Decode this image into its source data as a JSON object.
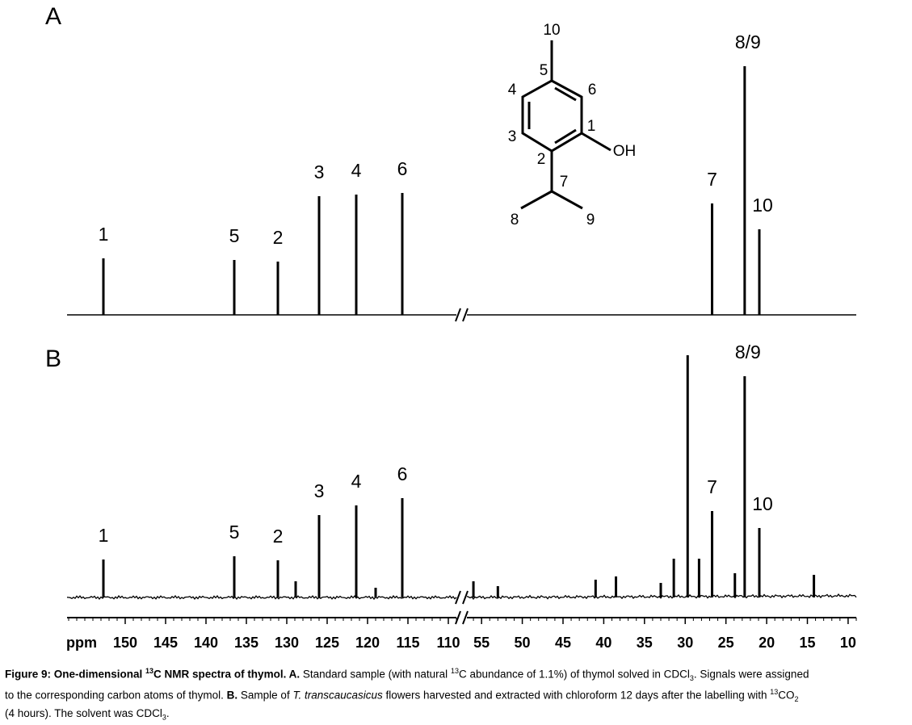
{
  "panels": [
    {
      "label": "A",
      "peaks": [
        {
          "label": "1",
          "ppm": 152.7,
          "height": 70
        },
        {
          "label": "5",
          "ppm": 136.5,
          "height": 68
        },
        {
          "label": "2",
          "ppm": 131.1,
          "height": 66
        },
        {
          "label": "3",
          "ppm": 126.0,
          "height": 147
        },
        {
          "label": "4",
          "ppm": 121.4,
          "height": 149
        },
        {
          "label": "6",
          "ppm": 115.7,
          "height": 151
        },
        {
          "label": "7",
          "ppm": 26.7,
          "height": 138
        },
        {
          "label": "8/9",
          "ppm": 22.7,
          "height": 308
        },
        {
          "label": "10",
          "ppm": 20.9,
          "height": 106
        }
      ]
    },
    {
      "label": "B",
      "peaks": [
        {
          "label": "1",
          "ppm": 152.7,
          "height": 47
        },
        {
          "label": "5",
          "ppm": 136.5,
          "height": 51
        },
        {
          "label": "2",
          "ppm": 131.1,
          "height": 46
        },
        {
          "label": "3",
          "ppm": 126.0,
          "height": 102
        },
        {
          "label": "4",
          "ppm": 121.4,
          "height": 114
        },
        {
          "label": "6",
          "ppm": 115.7,
          "height": 123
        },
        {
          "ppm": 128.9,
          "height": 20
        },
        {
          "ppm": 119.0,
          "height": 12
        },
        {
          "ppm": 56.0,
          "height": 20
        },
        {
          "ppm": 53.0,
          "height": 14
        },
        {
          "ppm": 41.0,
          "height": 22
        },
        {
          "ppm": 38.5,
          "height": 26
        },
        {
          "ppm": 33.0,
          "height": 18
        },
        {
          "ppm": 31.4,
          "height": 48
        },
        {
          "ppm": 29.7,
          "height": 300
        },
        {
          "ppm": 28.3,
          "height": 48
        },
        {
          "label": "7",
          "ppm": 26.7,
          "height": 107
        },
        {
          "ppm": 23.9,
          "height": 30
        },
        {
          "label": "8/9",
          "ppm": 22.7,
          "height": 274
        },
        {
          "label": "10",
          "ppm": 20.9,
          "height": 86
        },
        {
          "ppm": 14.2,
          "height": 28
        }
      ]
    }
  ],
  "axis": {
    "unit": "ppm",
    "left_range": [
      157.2,
      109
    ],
    "right_range": [
      56.8,
      9
    ],
    "left_ticks": [
      150,
      145,
      140,
      135,
      130,
      125,
      120,
      115,
      110
    ],
    "right_ticks": [
      55,
      50,
      45,
      40,
      35,
      30,
      25,
      20,
      15,
      10
    ]
  },
  "structure": {
    "atoms": [
      "10",
      "5",
      "4",
      "6",
      "3",
      "1",
      "OH",
      "2",
      "7",
      "8",
      "9"
    ]
  },
  "caption": [
    [
      {
        "text": "Figure 9: One-dimensional ",
        "style": "b"
      },
      {
        "text": "13",
        "style": "bsup"
      },
      {
        "text": "C NMR spectra of thymol. ",
        "style": "b"
      },
      {
        "text": "A.",
        "style": "b"
      },
      {
        "text": " Standard sample (with natural "
      },
      {
        "text": "13",
        "style": "sup"
      },
      {
        "text": "C abundance of 1.1%) of thymol solved in CDCl"
      },
      {
        "text": "3",
        "style": "sub"
      },
      {
        "text": ". Signals were assigned"
      }
    ],
    [
      {
        "text": "to the corresponding carbon atoms of thymol. "
      },
      {
        "text": "B.",
        "style": "b"
      },
      {
        "text": " Sample of "
      },
      {
        "text": "T. transcaucasicus",
        "style": "i"
      },
      {
        "text": " flowers harvested and extracted with chloroform 12 days after the labelling with "
      },
      {
        "text": "13",
        "style": "sup"
      },
      {
        "text": "CO"
      },
      {
        "text": "2",
        "style": "sub"
      }
    ],
    [
      {
        "text": "(4 hours). The solvent was CDCl"
      },
      {
        "text": "3",
        "style": "sub"
      },
      {
        "text": "."
      }
    ]
  ]
}
